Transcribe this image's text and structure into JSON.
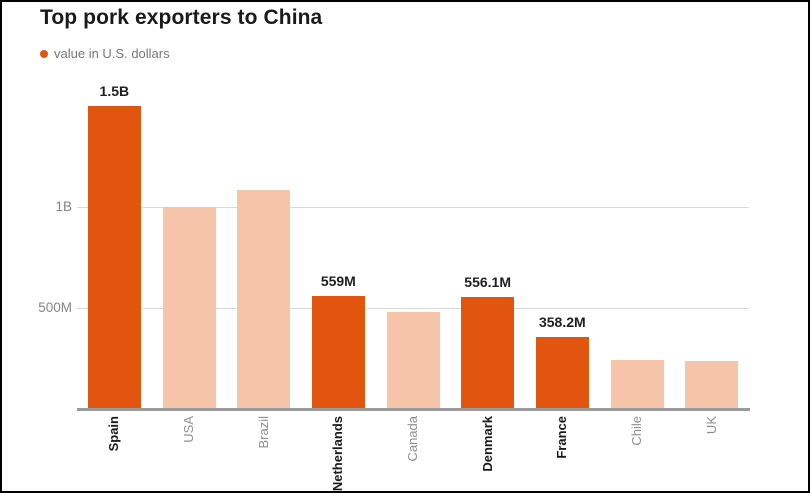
{
  "chart_data": {
    "type": "bar",
    "title": "Top pork exporters to China",
    "legend": "value in U.S. dollars",
    "unit": "U.S. dollars",
    "categories": [
      "Spain",
      "USA",
      "Brazil",
      "Netherlands",
      "Canada",
      "Denmark",
      "France",
      "Chile",
      "UK"
    ],
    "values_millions_usd": [
      1500,
      1000,
      1085,
      559,
      480,
      556.1,
      358.2,
      242,
      240
    ],
    "bar_value_labels": [
      "1.5B",
      "",
      "",
      "559M",
      "",
      "556.1M",
      "358.2M",
      "",
      ""
    ],
    "highlighted": [
      true,
      false,
      false,
      true,
      false,
      true,
      true,
      false,
      false
    ],
    "ytick_labels": [
      "500M",
      "1B"
    ],
    "ytick_values_millions": [
      500,
      1000
    ],
    "ylim_millions": [
      0,
      1600
    ],
    "grid": "horizontal-only",
    "legend_position": "top-left",
    "colors": {
      "highlight": "#e2550e",
      "muted": "#f5c4a9",
      "axis_baseline": "#9a9a9a",
      "gridline": "#d9d9d9"
    }
  }
}
